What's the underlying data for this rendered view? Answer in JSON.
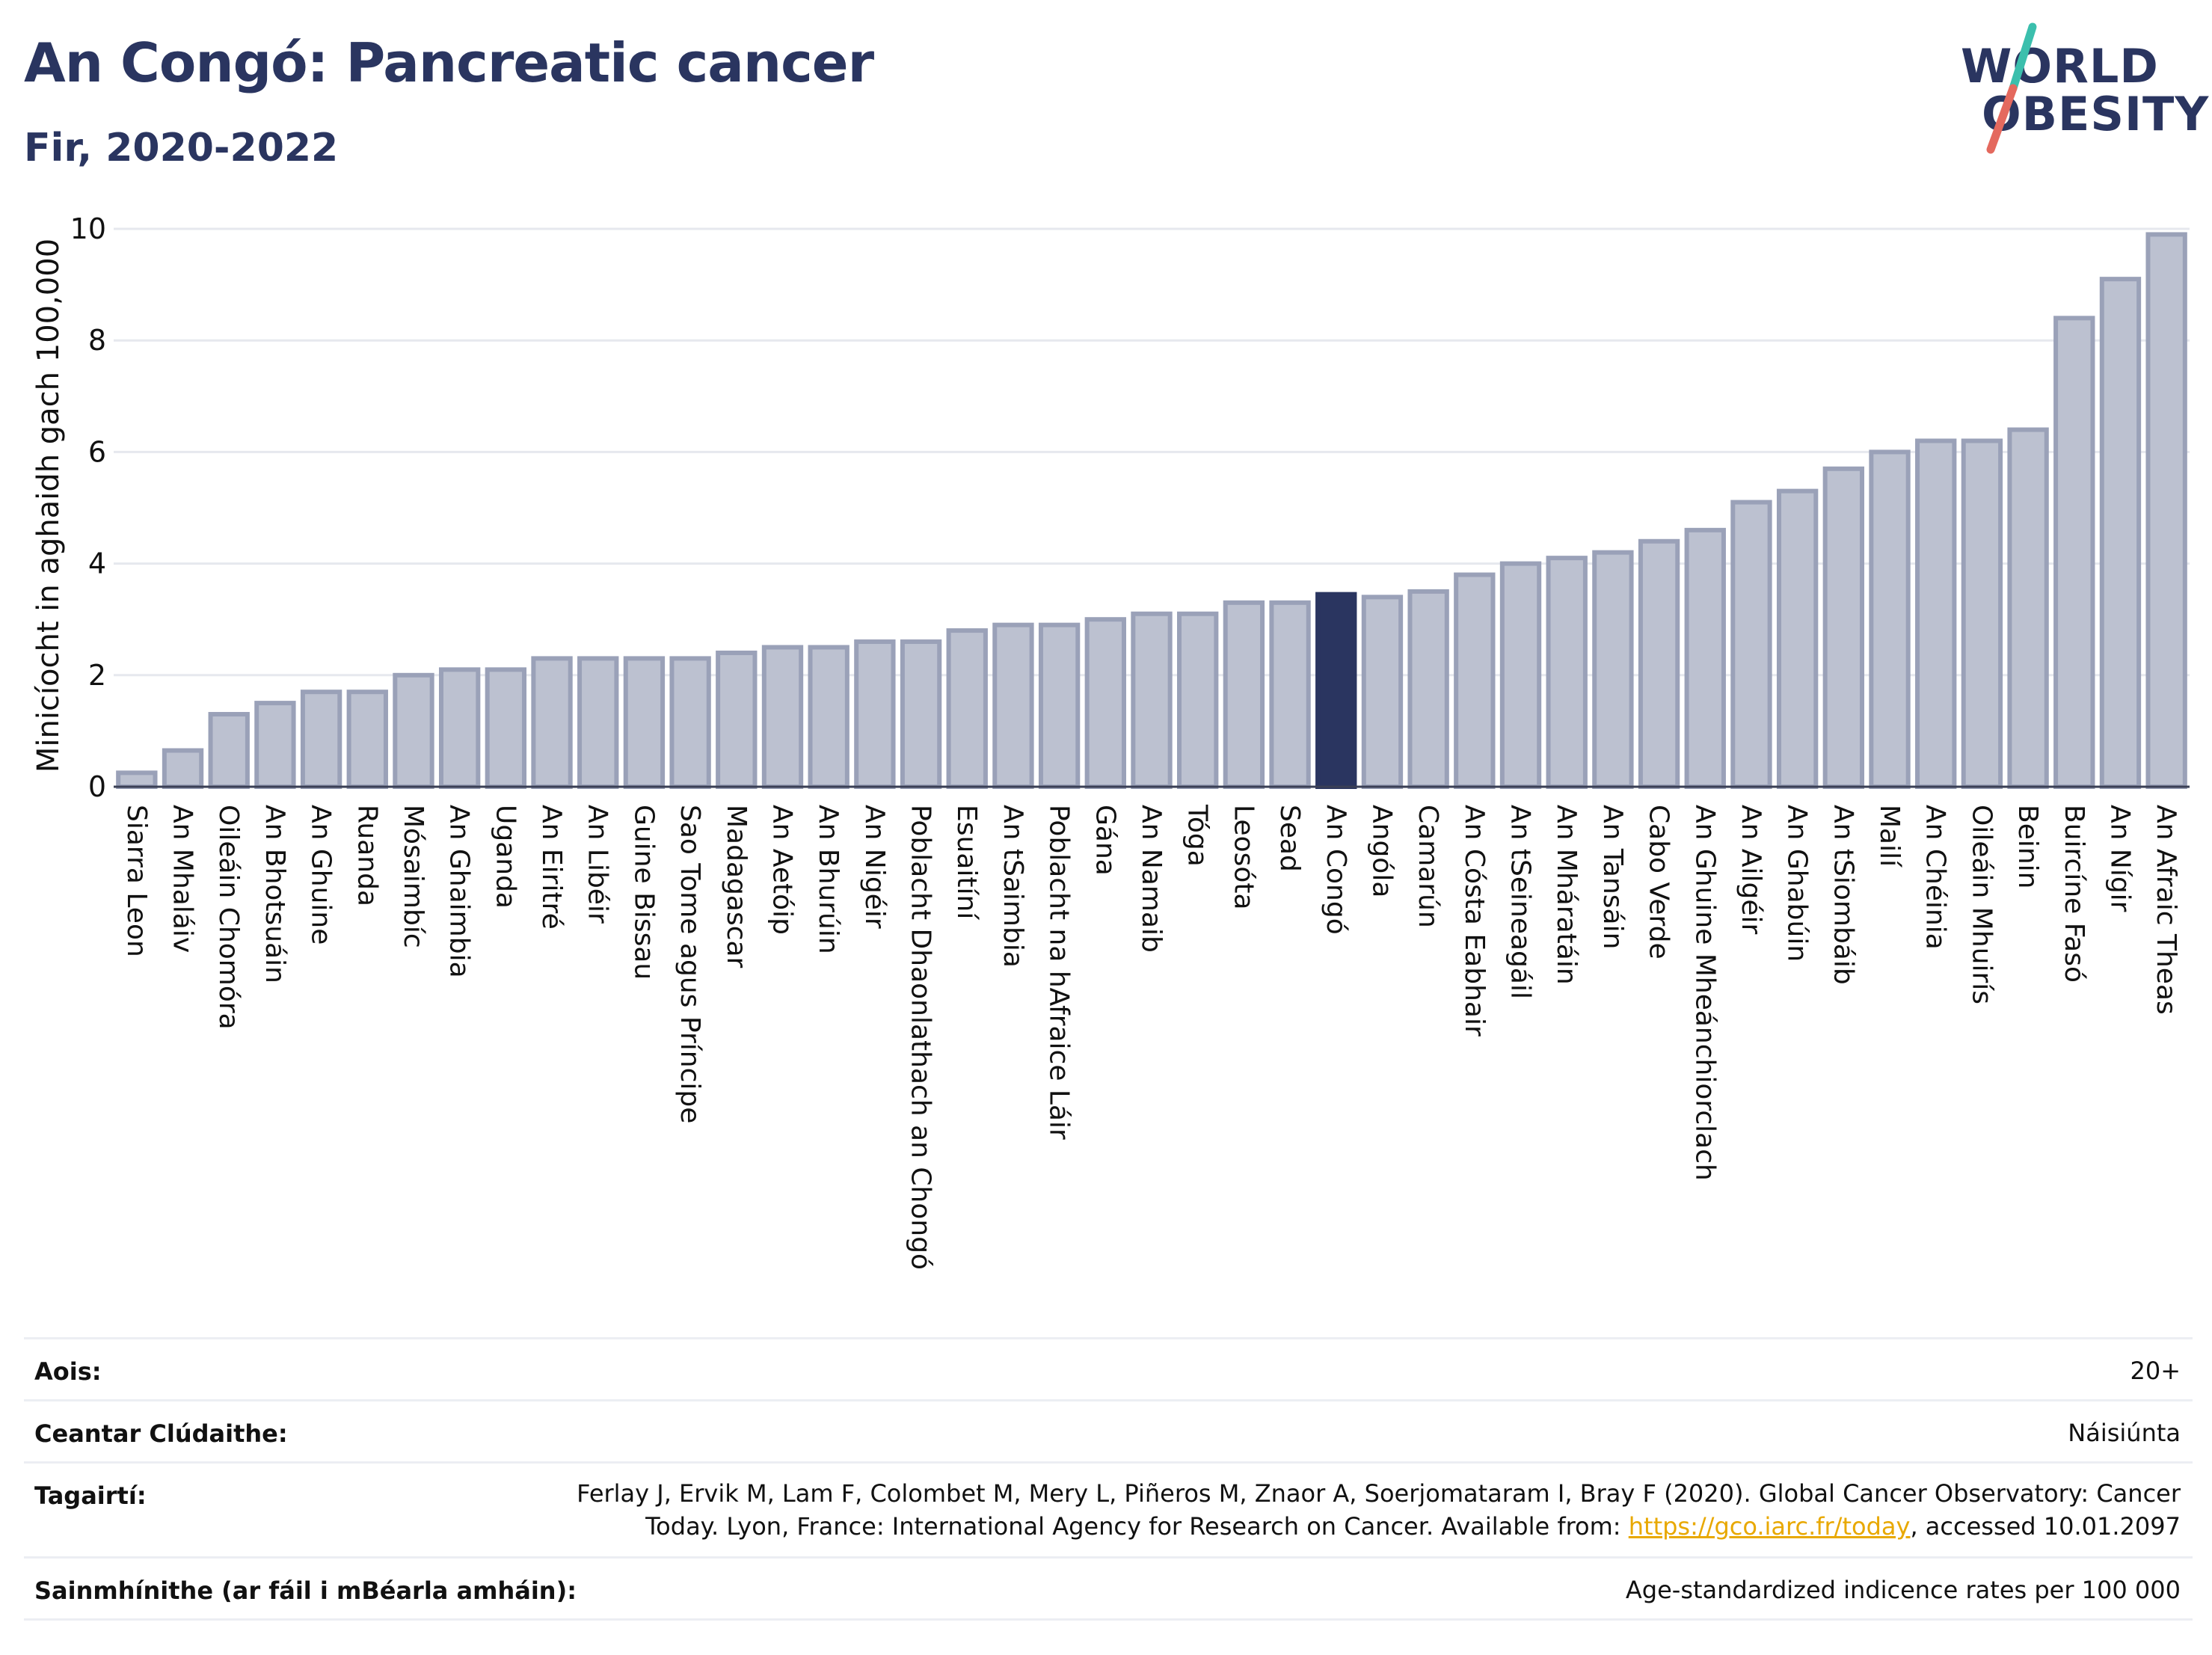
{
  "header": {
    "title": "An Congó: Pancreatic cancer",
    "subtitle": "Fir, 2020-2022"
  },
  "logo": {
    "line1": "WORLD",
    "line2": "OBESITY"
  },
  "colors": {
    "highlight": "#2a3560",
    "bar_fill": "#bcc1d0",
    "bar_stroke": "#9aa1b8",
    "grid": "#e6e8ee",
    "logo_teal": "#3bbfad",
    "logo_red": "#e4695e",
    "link": "#e8a800"
  },
  "chart_data": {
    "type": "bar",
    "ylabel": "Minicíocht in aghaidh gach 100,000",
    "ylim": [
      0,
      10
    ],
    "yticks": [
      0,
      2,
      4,
      6,
      8,
      10
    ],
    "grid": true,
    "highlight_category": "An Congó",
    "categories": [
      "Siarra Leon",
      "An Mhaláiv",
      "Oileáin Chomóra",
      "An Bhotsuáin",
      "An Ghuine",
      "Ruanda",
      "Mósaimbíc",
      "An Ghaimbia",
      "Uganda",
      "An Eiritré",
      "An Libéir",
      "Guine Bissau",
      "Sao Tome agus Príncipe",
      "Madagascar",
      "An Aetóip",
      "An Bhurúin",
      "An Nigéir",
      "Poblacht Dhaonlathach an Chongó",
      "Esuaitíní",
      "An tSaimbia",
      "Poblacht na hAfraice Láir",
      "Gána",
      "An Namaib",
      "Tóga",
      "Leosóta",
      "Sead",
      "An Congó",
      "Angóla",
      "Camarún",
      "An Cósta Eabhair",
      "An tSeineagáil",
      "An Mháratáin",
      "An Tansáin",
      "Cabo Verde",
      "An Ghuine Mheánchiorclach",
      "An Ailgéir",
      "An Ghabúin",
      "An tSiombáib",
      "Mailí",
      "An Chéinia",
      "Oileáin Mhuirís",
      "Beinin",
      "Buircíne Fasó",
      "An Nígir",
      "An Afraic Theas"
    ],
    "values": [
      0.25,
      0.65,
      1.3,
      1.5,
      1.7,
      1.7,
      2.0,
      2.1,
      2.1,
      2.3,
      2.3,
      2.3,
      2.3,
      2.4,
      2.5,
      2.5,
      2.6,
      2.6,
      2.8,
      2.9,
      2.9,
      3.0,
      3.1,
      3.1,
      3.3,
      3.3,
      3.45,
      3.4,
      3.5,
      3.8,
      4.0,
      4.1,
      4.2,
      4.4,
      4.6,
      5.1,
      5.3,
      5.7,
      6.0,
      6.2,
      6.2,
      6.4,
      8.4,
      9.1,
      9.9
    ]
  },
  "meta": {
    "age_label": "Aois:",
    "age_value": "20+",
    "area_label": "Ceantar Clúdaithe:",
    "area_value": "Náisiúnta",
    "ref_label": "Tagairtí:",
    "ref_line1": "Ferlay J, Ervik M, Lam F, Colombet M, Mery L, Piñeros M, Znaor A, Soerjomataram I, Bray F (2020). Global Cancer Observatory: Cancer",
    "ref_line2_pre": "Today. Lyon, France: International Agency for Research on Cancer. Available from: ",
    "ref_link": "https://gco.iarc.fr/today",
    "ref_line2_post": ", accessed 10.01.2097",
    "def_label": "Sainmhínithe (ar fáil i mBéarla amháin):",
    "def_value": "Age-standardized indicence rates per 100 000"
  }
}
